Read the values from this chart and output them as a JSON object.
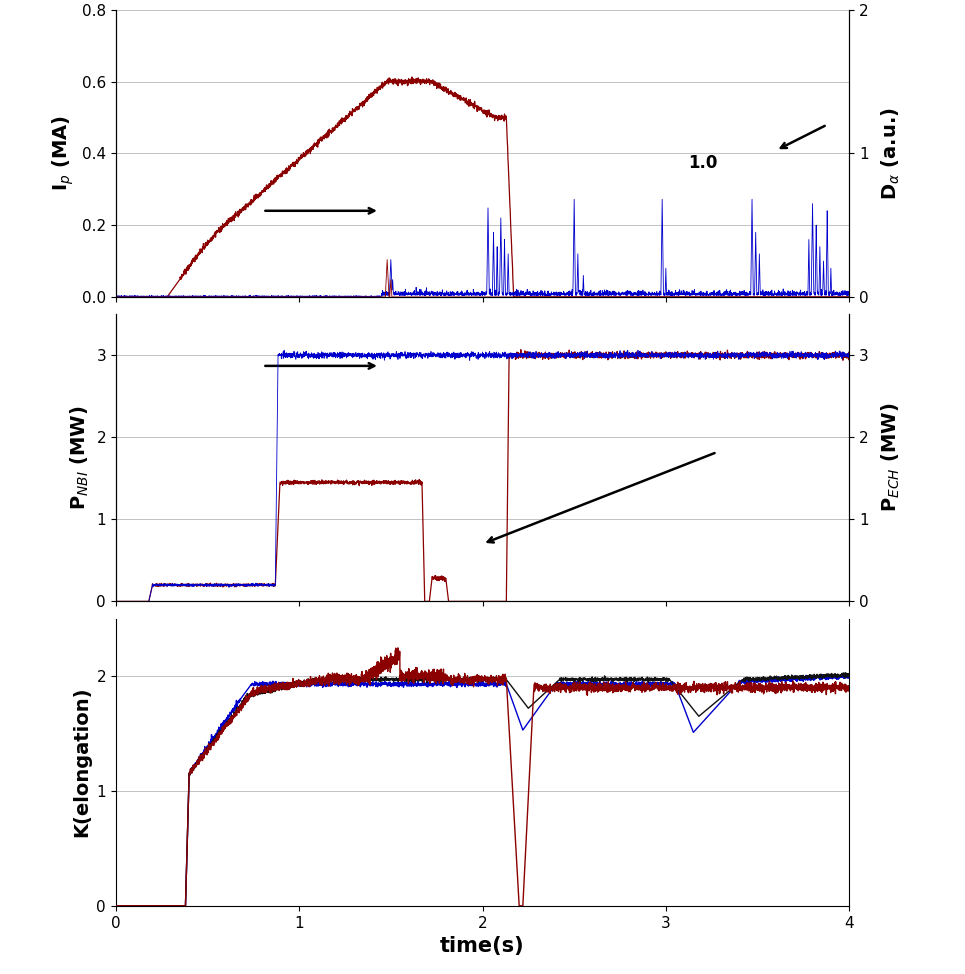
{
  "xlim": [
    0,
    4
  ],
  "panel1": {
    "ylim_left": [
      0,
      0.8
    ],
    "ylim_right": [
      0,
      2.0
    ],
    "yticks_left": [
      0.0,
      0.2,
      0.4,
      0.6,
      0.8
    ],
    "yticks_right": [
      0.0,
      1.0,
      2.0
    ],
    "ylabel_left": "I$_p$ (MA)",
    "ylabel_right": "D$_{\\alpha}$ (a.u.)"
  },
  "panel2": {
    "ylim": [
      0,
      3.5
    ],
    "yticks": [
      0,
      1,
      2,
      3
    ],
    "ylabel_left": "P$_{NBI}$ (MW)",
    "ylabel_right": "P$_{ECH}$ (MW)"
  },
  "panel3": {
    "ylim": [
      0,
      2.5
    ],
    "yticks": [
      0,
      1,
      2
    ],
    "ylabel": "K(elongation)"
  },
  "xlabel": "time(s)",
  "xticks": [
    0,
    1,
    2,
    3,
    4
  ],
  "colors": {
    "red": "#8B0000",
    "blue": "#0000CD",
    "black": "#111111"
  },
  "background": "#ffffff",
  "grid_color": "#aaaaaa"
}
